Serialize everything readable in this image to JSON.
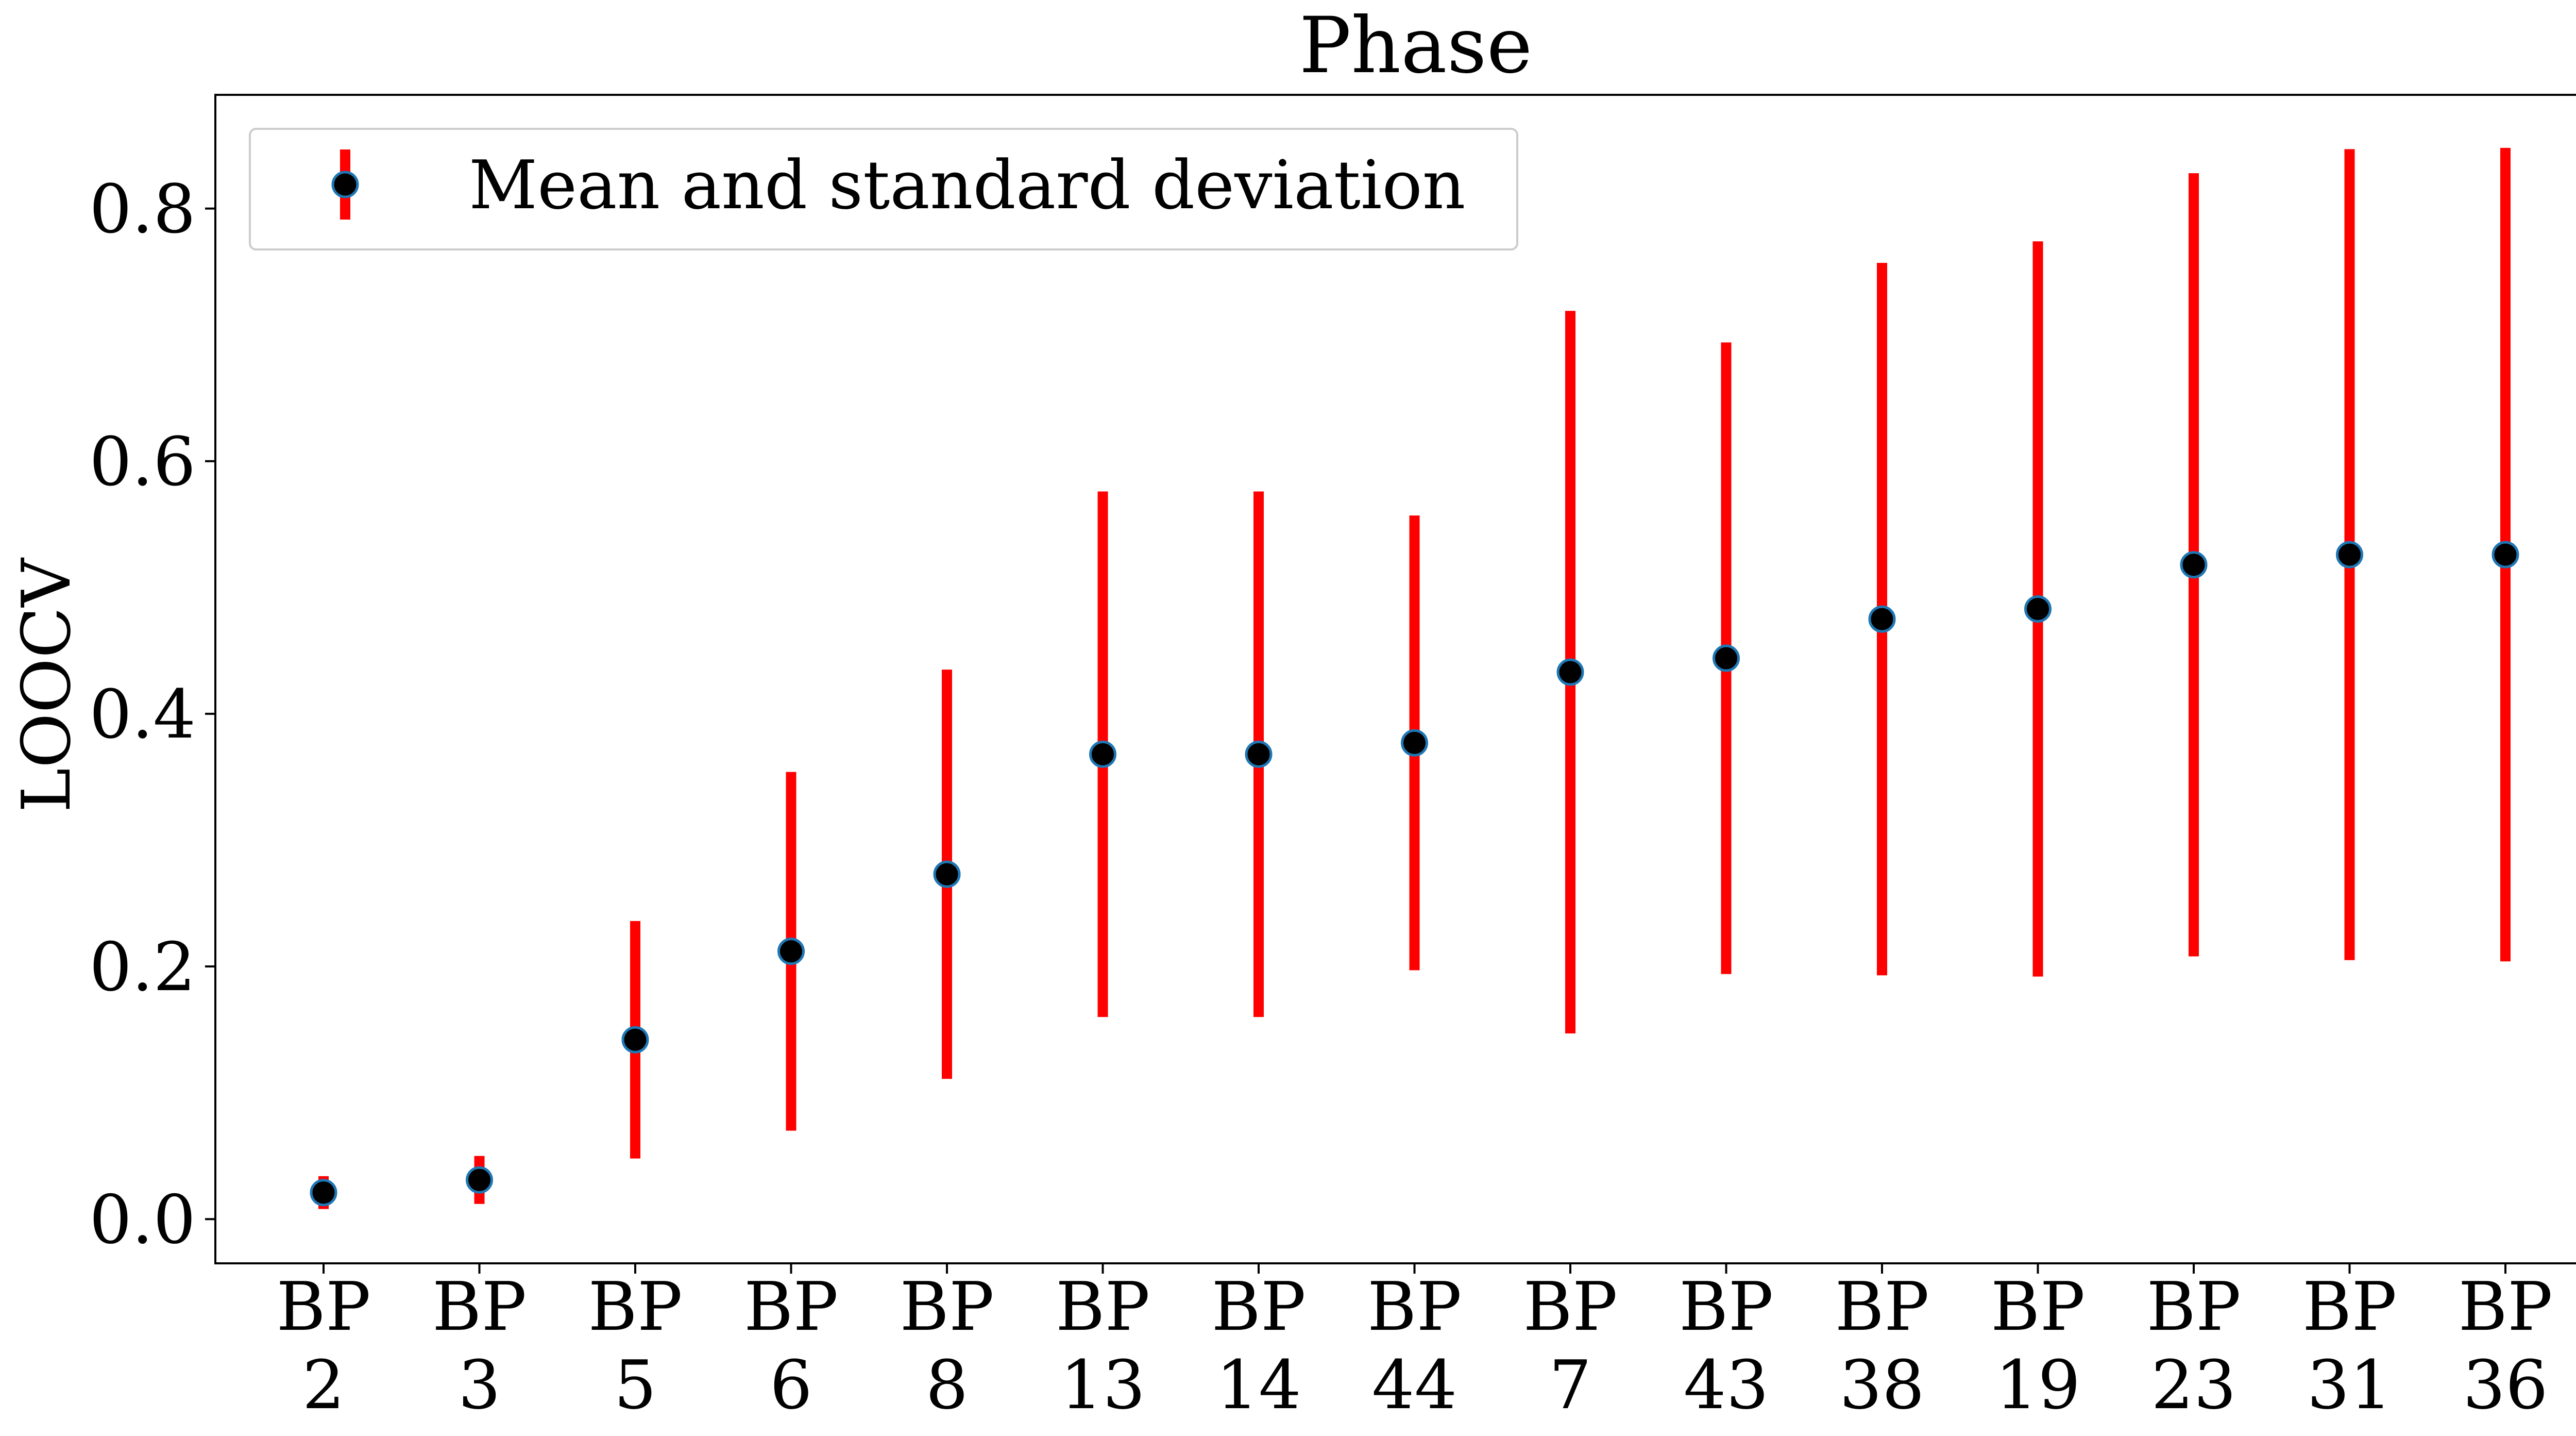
{
  "chart_data": {
    "type": "scatter",
    "title": "Phase",
    "xlabel": "",
    "ylabel": "LOOCV",
    "ylim": [
      -0.035,
      0.89
    ],
    "yticks": [
      "0.0",
      "0.2",
      "0.4",
      "0.6",
      "0.8"
    ],
    "grid": false,
    "legend": {
      "placement": "top-left",
      "entries": [
        "Mean and standard deviation"
      ]
    },
    "colors": {
      "errorbar": "#ff0000",
      "marker_fill": "#000000",
      "marker_edge": "#1f77b4"
    },
    "categories": [
      "BP\n2",
      "BP\n3",
      "BP\n5",
      "BP\n6",
      "BP\n8",
      "BP\n13",
      "BP\n14",
      "BP\n44",
      "BP\n7",
      "BP\n43",
      "BP\n38",
      "BP\n19",
      "BP\n23",
      "BP\n31",
      "BP\n36"
    ],
    "series": [
      {
        "name": "Mean and standard deviation",
        "mean": [
          0.021,
          0.031,
          0.142,
          0.212,
          0.273,
          0.368,
          0.368,
          0.377,
          0.433,
          0.444,
          0.475,
          0.483,
          0.518,
          0.526,
          0.526
        ],
        "std": [
          0.013,
          0.019,
          0.094,
          0.142,
          0.162,
          0.208,
          0.208,
          0.18,
          0.286,
          0.25,
          0.282,
          0.291,
          0.31,
          0.321,
          0.322
        ]
      }
    ]
  }
}
